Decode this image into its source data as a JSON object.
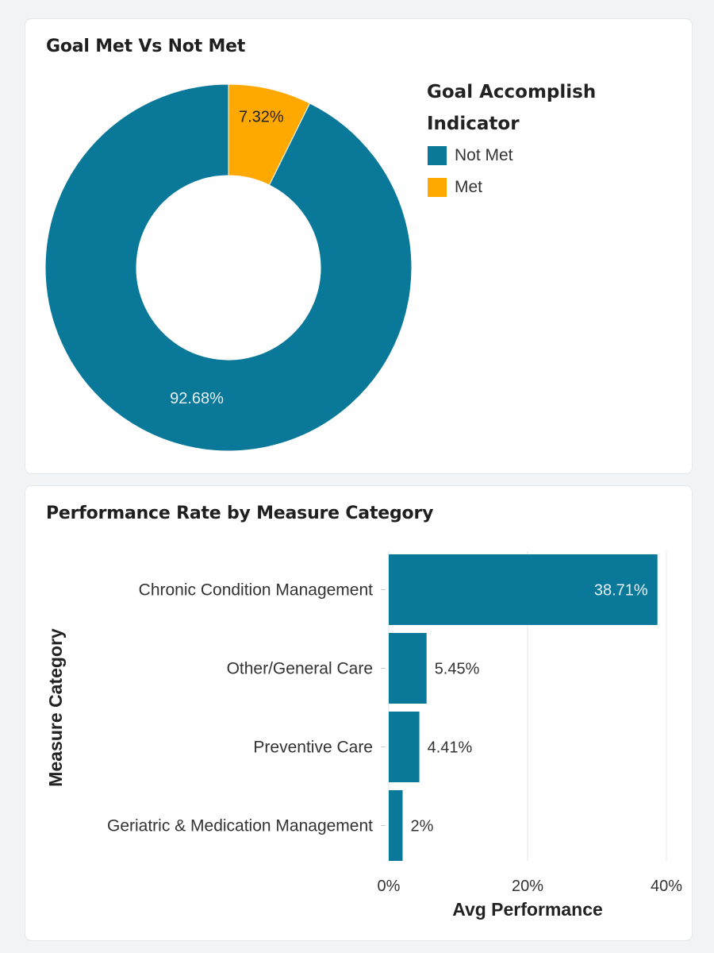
{
  "donut_card": {
    "title": "Goal Met Vs Not Met",
    "legend": {
      "title_line1": "Goal Accomplish",
      "title_line2": "Indicator",
      "items": [
        {
          "label": "Not Met",
          "color": "#0a7899"
        },
        {
          "label": "Met",
          "color": "#ffa800"
        }
      ]
    }
  },
  "bar_card": {
    "title": "Performance Rate by Measure Category"
  },
  "chart_data": [
    {
      "type": "pie",
      "subtype": "donut",
      "title": "Goal Met Vs Not Met",
      "legend_title": "Goal Accomplish Indicator",
      "slices": [
        {
          "label": "Met",
          "value": 7.32,
          "display": "7.32%",
          "color": "#ffa800"
        },
        {
          "label": "Not Met",
          "value": 92.68,
          "display": "92.68%",
          "color": "#0a7899"
        }
      ]
    },
    {
      "type": "bar",
      "orientation": "horizontal",
      "title": "Performance Rate by Measure Category",
      "xlabel": "Avg Performance",
      "ylabel": "Measure Category",
      "categories": [
        "Chronic Condition Management",
        "Other/General Care",
        "Preventive Care",
        "Geriatric & Medication Management"
      ],
      "values": [
        38.71,
        5.45,
        4.41,
        2
      ],
      "value_labels": [
        "38.71%",
        "5.45%",
        "4.41%",
        "2%"
      ],
      "xlim": [
        0,
        40
      ],
      "xticks": [
        0,
        20,
        40
      ],
      "xtick_labels": [
        "0%",
        "20%",
        "40%"
      ],
      "grid": true,
      "color": "#0a7899"
    }
  ]
}
